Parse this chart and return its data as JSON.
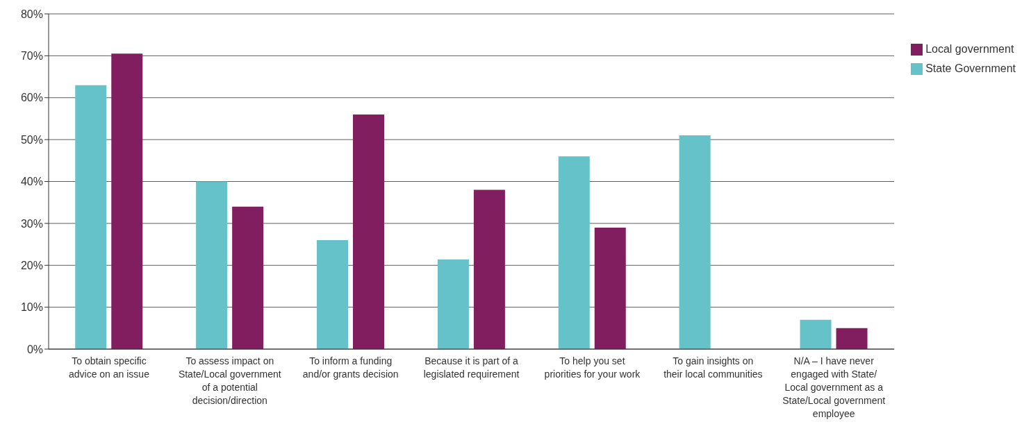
{
  "chart_data": {
    "type": "bar",
    "categories": [
      "To obtain specific advice on an issue",
      "To assess impact on State/Local government of a potential decision/direction",
      "To inform a funding and/or grants decision",
      "Because it is part of a legislated requirement",
      "To help you set priorities for your work",
      "To gain insights on their local communities",
      "N/A – I have never engaged with State/ Local government as a State/Local government employee"
    ],
    "series": [
      {
        "name": "State Government",
        "color": "#64c2c8",
        "values": [
          63,
          40,
          26,
          21.4,
          46,
          51,
          7
        ]
      },
      {
        "name": "Local government",
        "color": "#801e5f",
        "values": [
          70.5,
          34,
          56,
          38,
          29,
          null,
          5
        ]
      }
    ],
    "ylim": [
      0,
      80
    ],
    "yticks": [
      {
        "value": 0,
        "label": "0%"
      },
      {
        "value": 10,
        "label": "10%"
      },
      {
        "value": 20,
        "label": "20%"
      },
      {
        "value": 30,
        "label": "30%"
      },
      {
        "value": 40,
        "label": "40%"
      },
      {
        "value": 50,
        "label": "50%"
      },
      {
        "value": 60,
        "label": "60%"
      },
      {
        "value": 70,
        "label": "70%"
      },
      {
        "value": 80,
        "label": "80%"
      }
    ],
    "grid": "y",
    "legend": "top right"
  }
}
